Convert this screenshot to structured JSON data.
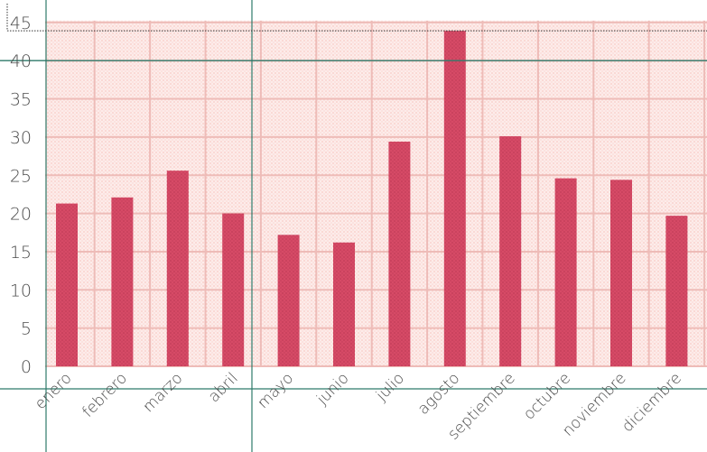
{
  "chart_data": {
    "type": "bar",
    "title": "",
    "xlabel": "",
    "ylabel": "",
    "categories": [
      "enero",
      "febrero",
      "marzo",
      "abril",
      "mayo",
      "junio",
      "julio",
      "agosto",
      "septiembre",
      "octubre",
      "noviembre",
      "diciembre"
    ],
    "values": [
      21.3,
      22.1,
      25.6,
      20.0,
      17.2,
      16.2,
      29.4,
      43.9,
      30.1,
      24.6,
      24.4,
      19.7
    ],
    "ylim": [
      0,
      45
    ],
    "yticks": [
      0,
      5,
      10,
      15,
      20,
      25,
      30,
      35,
      40,
      45
    ],
    "ytick_labels": [
      "0",
      "5",
      "10",
      "15",
      "20",
      "25",
      "30",
      "35",
      "40",
      "45"
    ],
    "grid": true,
    "reference_line": 40,
    "marked_level": 43.9,
    "colors": {
      "bar": "#d64a66",
      "bar_dots": "#9b2440",
      "plot_background": "#fdecea",
      "background_dots": "#f2a99f",
      "grid": "#eebcb8",
      "frame": "#2e7a6a",
      "tick_text": "#4a4a4a"
    }
  }
}
